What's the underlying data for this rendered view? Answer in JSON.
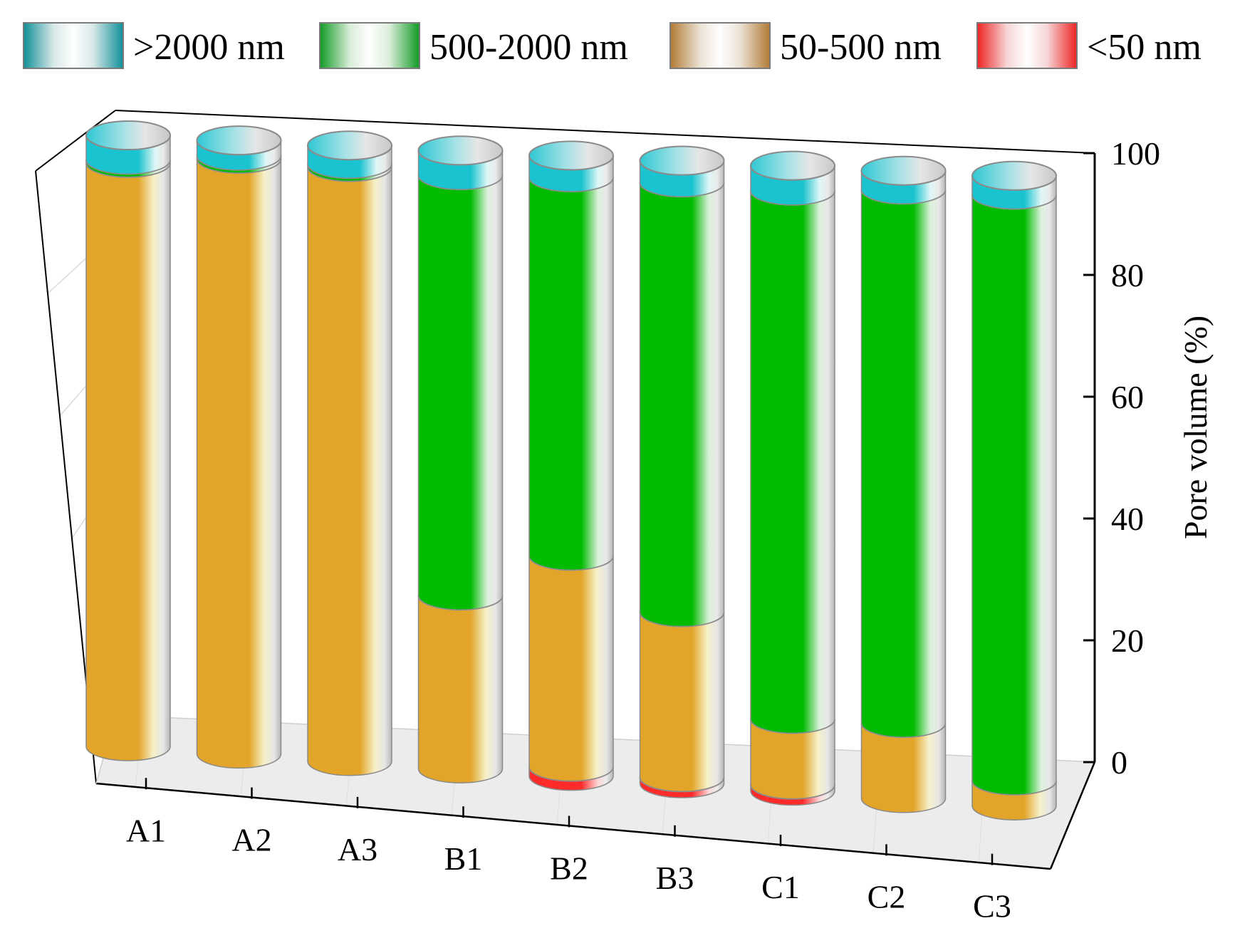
{
  "chart_data": {
    "type": "bar",
    "stacked": true,
    "style": "3d-cylinder",
    "categories": [
      "A1",
      "A2",
      "A3",
      "B1",
      "B2",
      "B3",
      "C1",
      "C2",
      "C3"
    ],
    "series": [
      {
        "name": "<50 nm",
        "color": "#ff2b2b",
        "values": [
          0,
          0,
          0,
          0,
          1.5,
          1.0,
          1.0,
          0,
          0
        ]
      },
      {
        "name": "50-500 nm",
        "color": "#e2a529",
        "values": [
          95.5,
          97.0,
          96.5,
          28.0,
          34.0,
          26.5,
          10.5,
          12.0,
          4.0
        ]
      },
      {
        "name": "500-2000 nm",
        "color": "#00bb00",
        "values": [
          0.5,
          0.5,
          0.5,
          68.0,
          61.0,
          69.0,
          84.5,
          85.0,
          93.0
        ]
      },
      {
        "name": ">2000 nm",
        "color": "#19c3cf",
        "values": [
          4.0,
          2.5,
          3.0,
          4.0,
          3.5,
          3.5,
          4.0,
          3.0,
          3.0
        ]
      }
    ],
    "legend": [
      {
        "label": ">2000 nm",
        "color": "#0e8f97"
      },
      {
        "label": "500-2000 nm",
        "color": "#0f9a24"
      },
      {
        "label": "50-500 nm",
        "color": "#b07a35"
      },
      {
        "label": "<50 nm",
        "color": "#ee2222"
      }
    ],
    "ylabel": "Pore volume (%)",
    "xlabel": "",
    "yticks": [
      0,
      20,
      40,
      60,
      80,
      100
    ],
    "ylim": [
      0,
      100
    ],
    "legend_position": "top"
  }
}
